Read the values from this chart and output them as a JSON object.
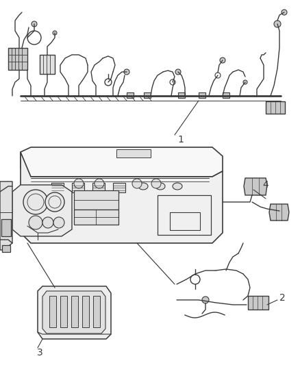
{
  "background_color": "#ffffff",
  "line_color": "#3a3a3a",
  "light_fill": "#f0f0f0",
  "medium_fill": "#e0e0e0",
  "dark_fill": "#c8c8c8",
  "label_color": "#2a2a2a",
  "figsize": [
    4.38,
    5.33
  ],
  "dpi": 100,
  "label_fontsize": 10,
  "lw_wire": 1.0,
  "lw_harness": 2.0,
  "lw_thin": 0.7
}
